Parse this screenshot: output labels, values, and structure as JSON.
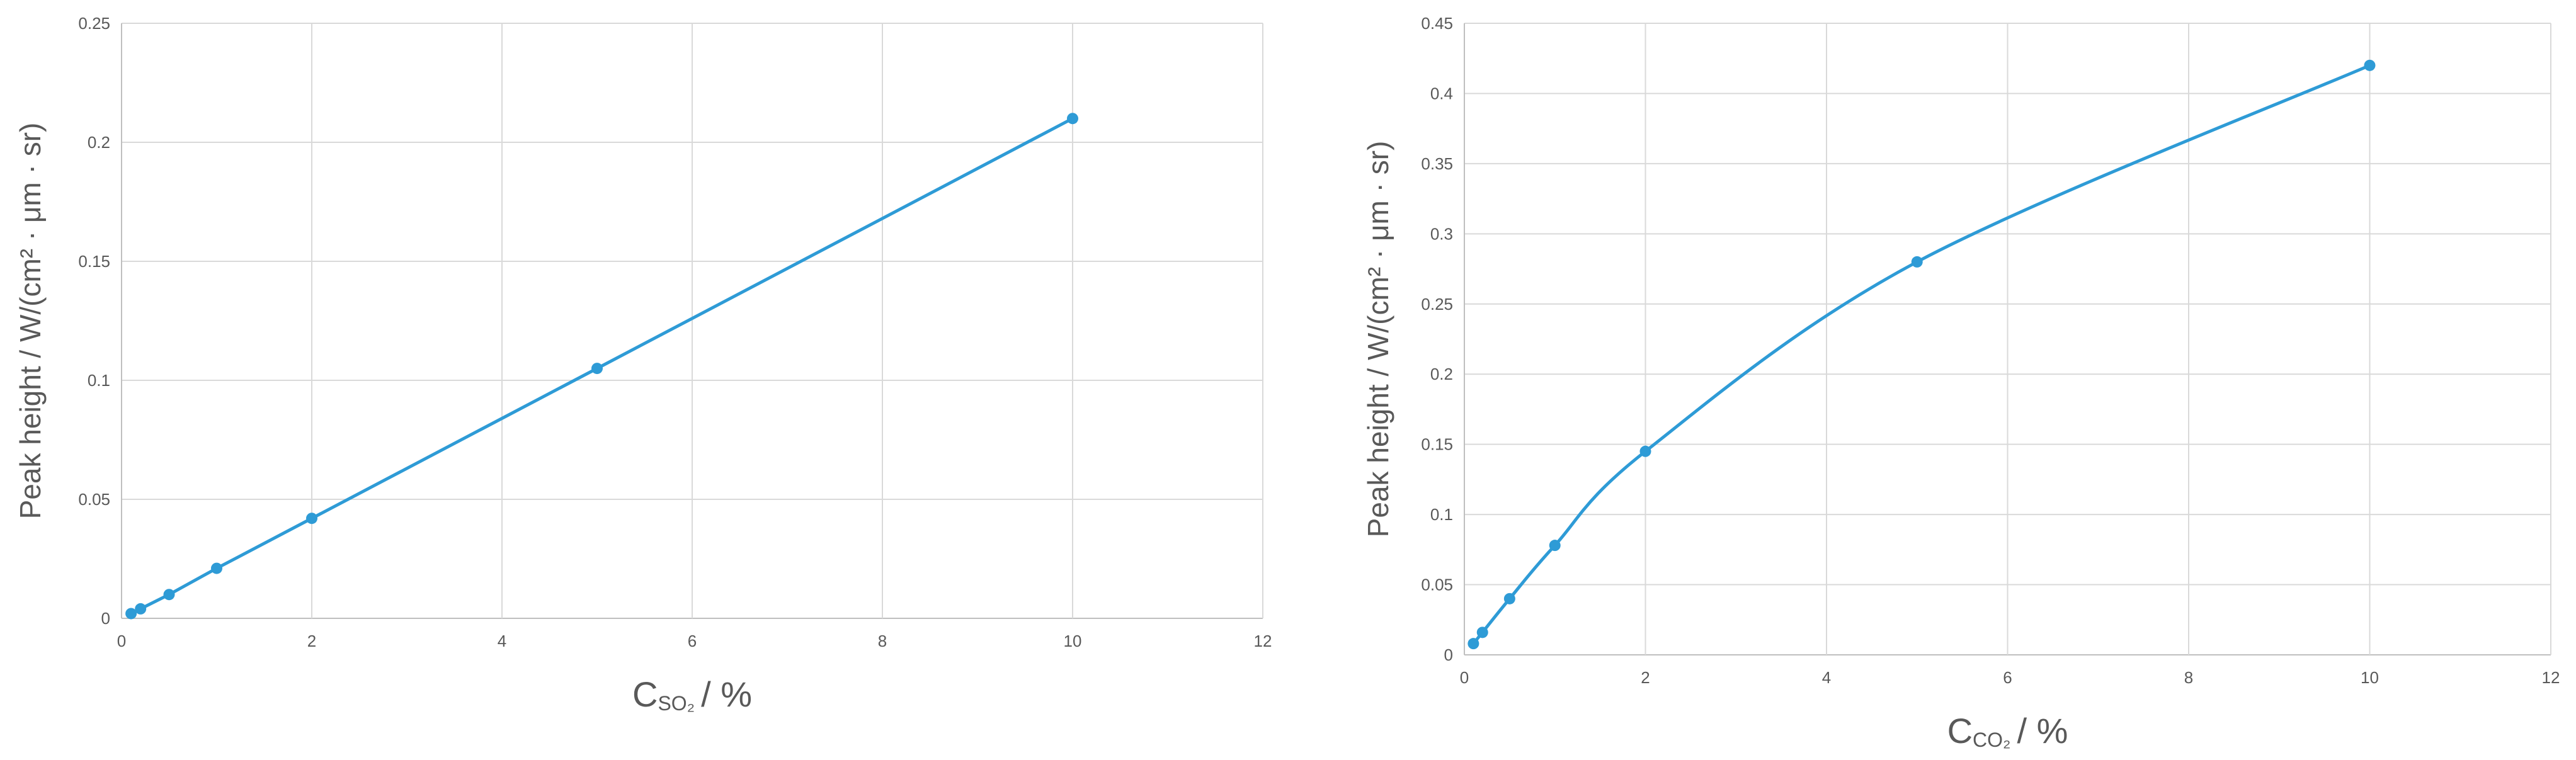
{
  "chart_data": [
    {
      "type": "line",
      "smooth": false,
      "title": "",
      "ylabel": "Peak height / W/(cm² · μm · sr)",
      "xlabel_main": "C",
      "xlabel_sub": "SO₂",
      "xlabel_rest": "/ %",
      "xlim": [
        0,
        12
      ],
      "ylim": [
        0,
        0.25
      ],
      "x_ticks": [
        "0",
        "2",
        "4",
        "6",
        "8",
        "10",
        "12"
      ],
      "y_ticks": [
        "0",
        "0.05",
        "0.1",
        "0.15",
        "0.2",
        "0.25"
      ],
      "grid": true,
      "color": "#2e9bd6",
      "series": [
        {
          "x": [
            0.1,
            0.2,
            0.5,
            1,
            2,
            5,
            10
          ],
          "y": [
            0.002,
            0.004,
            0.01,
            0.021,
            0.042,
            0.105,
            0.21
          ]
        }
      ]
    },
    {
      "type": "line",
      "smooth": true,
      "title": "",
      "ylabel": "Peak height / W/(cm² · μm · sr)",
      "xlabel_main": "C",
      "xlabel_sub": "CO₂",
      "xlabel_rest": "/ %",
      "xlim": [
        0,
        12
      ],
      "ylim": [
        0,
        0.45
      ],
      "x_ticks": [
        "0",
        "2",
        "4",
        "6",
        "8",
        "10",
        "12"
      ],
      "y_ticks": [
        "0",
        "0.05",
        "0.1",
        "0.15",
        "0.2",
        "0.25",
        "0.3",
        "0.35",
        "0.4",
        "0.45"
      ],
      "grid": true,
      "color": "#2e9bd6",
      "series": [
        {
          "x": [
            0.1,
            0.2,
            0.5,
            1,
            2,
            5,
            10
          ],
          "y": [
            0.008,
            0.016,
            0.04,
            0.078,
            0.145,
            0.28,
            0.42
          ]
        }
      ]
    }
  ]
}
